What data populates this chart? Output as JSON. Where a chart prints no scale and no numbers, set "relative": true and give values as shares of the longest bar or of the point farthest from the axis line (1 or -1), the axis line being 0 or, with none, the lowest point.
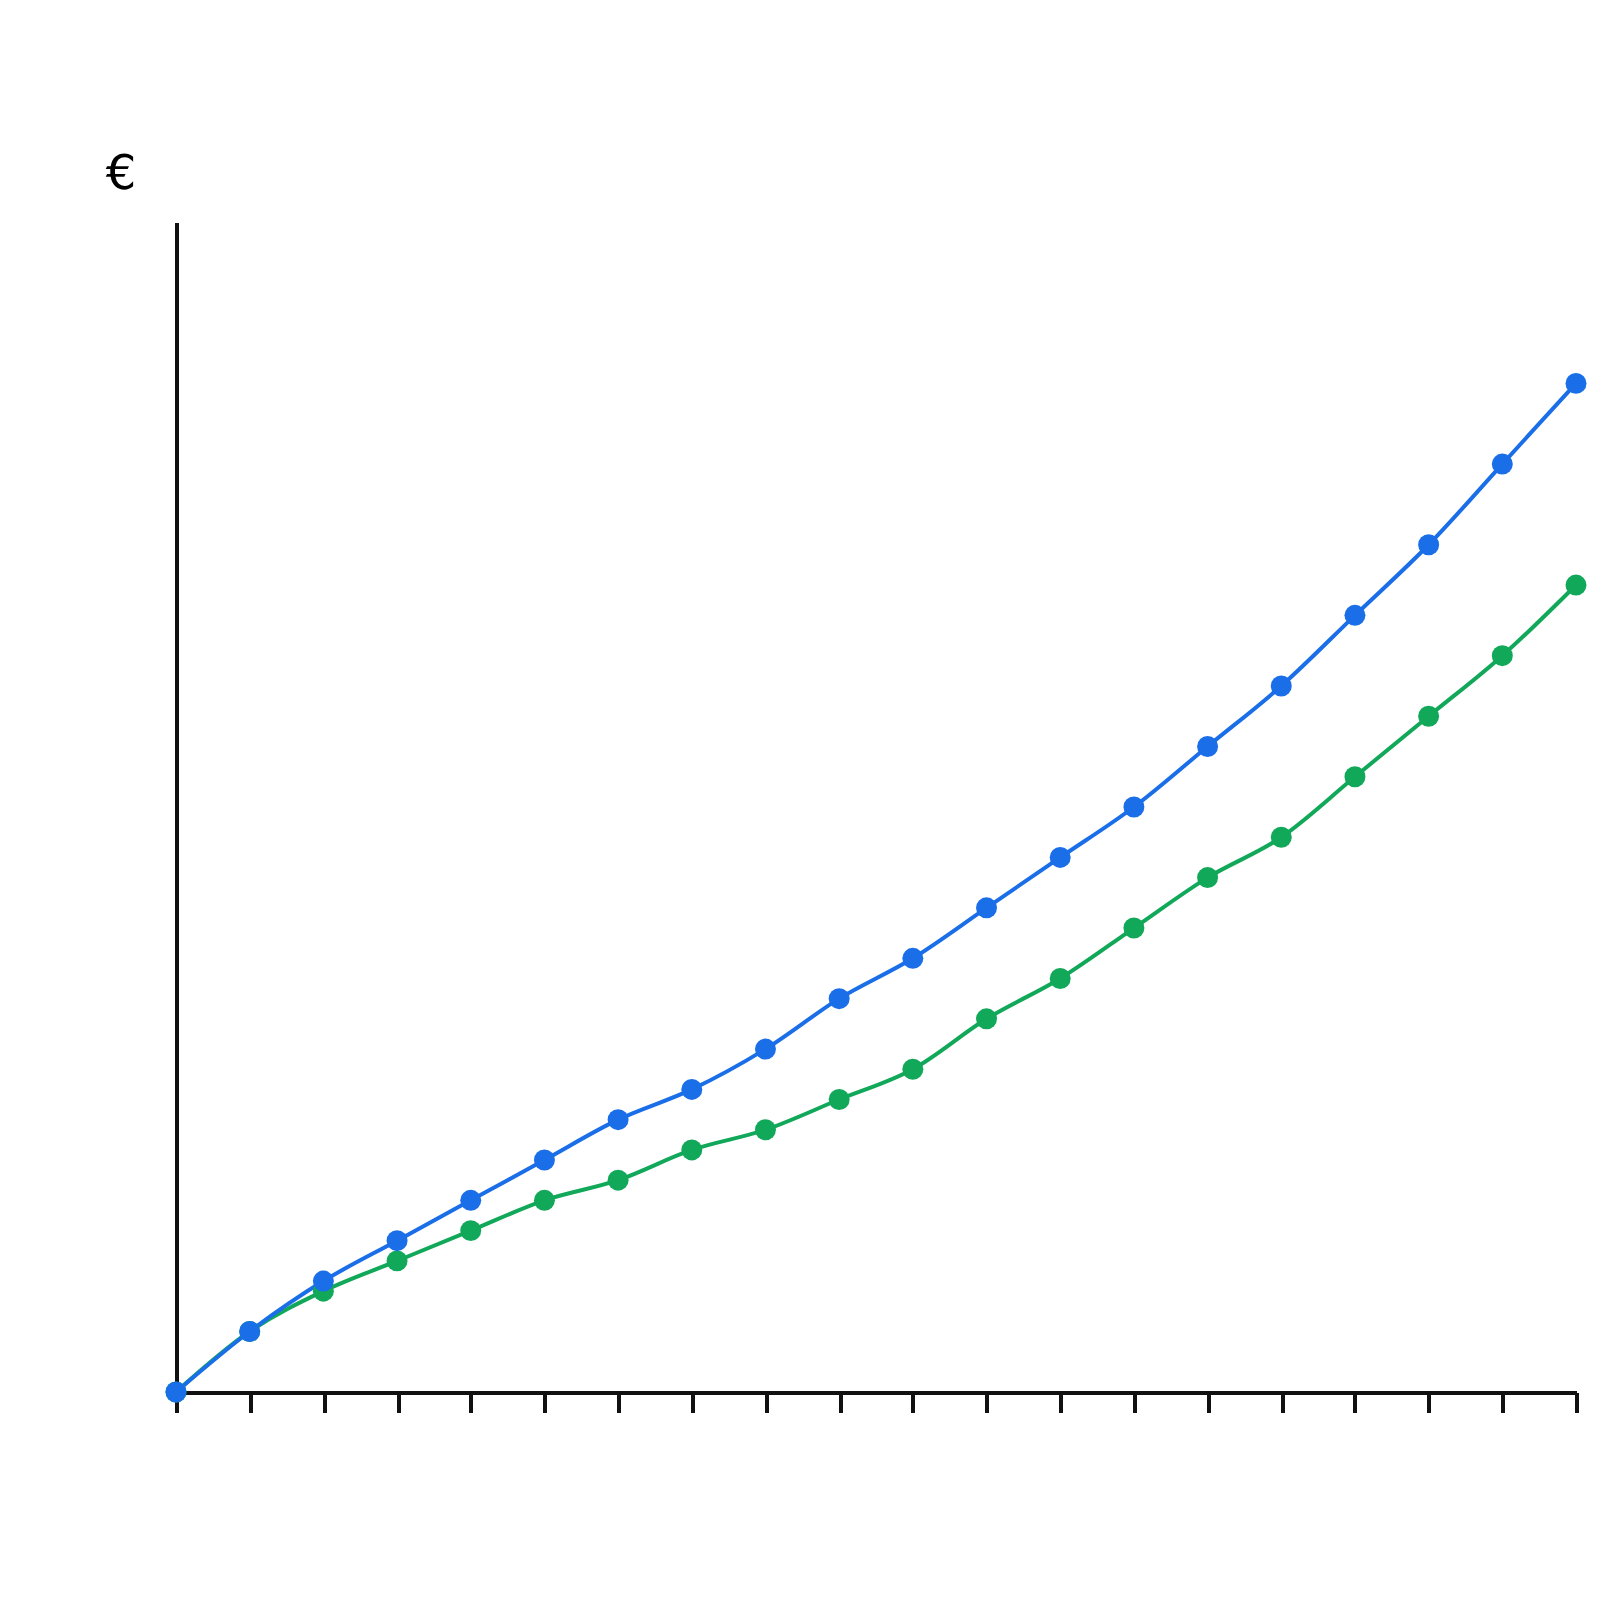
{
  "chart_data": {
    "type": "line",
    "ylabel": "€",
    "relative": true,
    "marker": "circle",
    "line_style": "solid",
    "grid": false,
    "legend": false,
    "categories": [
      null,
      null,
      null,
      null,
      null,
      null,
      null,
      null,
      null,
      null,
      null,
      null,
      null,
      null,
      null,
      null,
      null,
      null,
      null,
      null
    ],
    "series": [
      {
        "color": "#1a6ee8",
        "values": [
          0,
          0.06,
          0.11,
          0.15,
          0.19,
          0.23,
          0.27,
          0.3,
          0.34,
          0.39,
          0.43,
          0.48,
          0.53,
          0.58,
          0.64,
          0.7,
          0.77,
          0.84,
          0.92,
          1
        ]
      },
      {
        "color": "#12a85a",
        "values": [
          0,
          0.06,
          0.1,
          0.13,
          0.16,
          0.19,
          0.21,
          0.24,
          0.26,
          0.29,
          0.32,
          0.37,
          0.41,
          0.46,
          0.51,
          0.55,
          0.61,
          0.67,
          0.73,
          0.8
        ]
      }
    ]
  }
}
